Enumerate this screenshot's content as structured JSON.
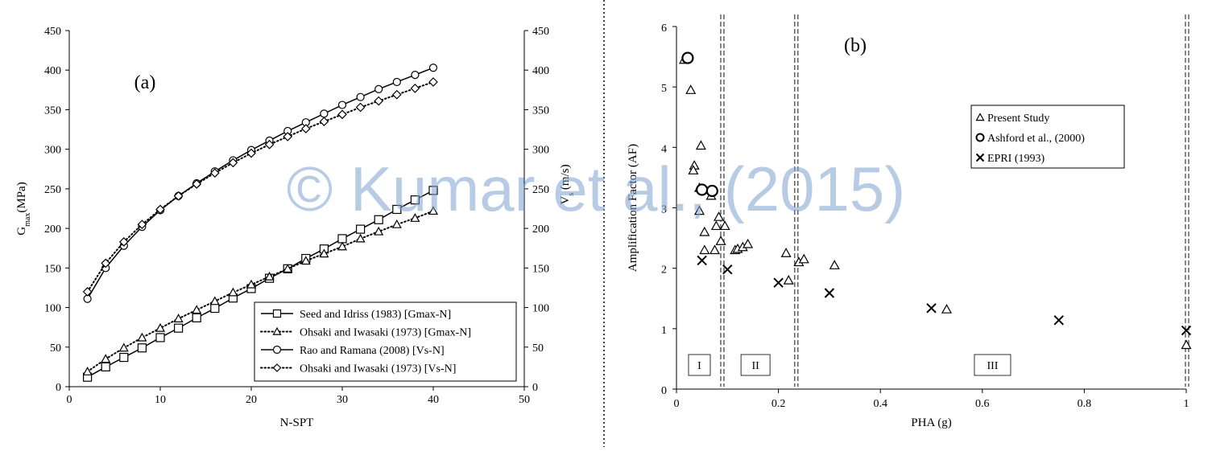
{
  "watermark": "© Kumar et al., (2015)",
  "chart_data": [
    {
      "type": "line",
      "panel_label": "(a)",
      "xlabel": "N-SPT",
      "ylabel": "G",
      "ylabel_sub": "max",
      "ylabel_tail": "(MPa)",
      "y2label": "V",
      "y2label_sub": "s",
      "y2label_tail": " (m/s)",
      "xlim": [
        0,
        50
      ],
      "ylim": [
        0,
        450
      ],
      "y2lim": [
        0,
        450
      ],
      "xticks": [
        0,
        10,
        20,
        30,
        40,
        50
      ],
      "yticks": [
        0,
        50,
        100,
        150,
        200,
        250,
        300,
        350,
        400,
        450
      ],
      "legend_position": "bottom-right",
      "x": [
        2,
        4,
        6,
        8,
        10,
        12,
        14,
        16,
        18,
        20,
        22,
        24,
        26,
        28,
        30,
        32,
        34,
        36,
        38,
        40
      ],
      "series": [
        {
          "name": "Seed and Idriss (1983) [Gmax-N]",
          "marker": "square",
          "line": "solid",
          "axis": "left",
          "values": [
            12,
            25,
            37,
            49,
            62,
            74,
            87,
            99,
            112,
            124,
            137,
            149,
            162,
            174,
            187,
            199,
            211,
            224,
            236,
            248
          ]
        },
        {
          "name": "Ohsaki and Iwasaki (1973) [Gmax-N]",
          "marker": "triangle",
          "line": "dotted",
          "axis": "left",
          "values": [
            19,
            35,
            49,
            62,
            74,
            86,
            97,
            108,
            119,
            129,
            139,
            149,
            159,
            168,
            177,
            187,
            196,
            205,
            213,
            222
          ]
        },
        {
          "name": "Rao and Ramana (2008) [Vs-N]",
          "marker": "circle",
          "line": "solid",
          "axis": "right",
          "values": [
            111,
            150,
            178,
            202,
            223,
            241,
            257,
            272,
            286,
            299,
            311,
            323,
            334,
            345,
            356,
            366,
            376,
            385,
            394,
            403
          ]
        },
        {
          "name": "Ohsaki and Iwasaki (1973) [Vs-N]",
          "marker": "diamond",
          "line": "dotted",
          "axis": "right",
          "values": [
            120,
            156,
            183,
            205,
            224,
            241,
            256,
            270,
            283,
            295,
            306,
            316,
            326,
            335,
            344,
            353,
            361,
            369,
            377,
            385
          ]
        }
      ]
    },
    {
      "type": "scatter",
      "panel_label": "(b)",
      "xlabel": "PHA (g)",
      "ylabel": "Amplification Factor (AF)",
      "xlim": [
        0,
        1
      ],
      "ylim": [
        0,
        6
      ],
      "xticks": [
        0,
        0.2,
        0.4,
        0.6,
        0.8,
        1
      ],
      "xticklabels": [
        "0",
        "0.2",
        "0.4",
        "0.6",
        "0.8",
        "1"
      ],
      "yticks": [
        0,
        1,
        2,
        3,
        4,
        5,
        6
      ],
      "legend_position": "right",
      "zone_boundaries": [
        0.09,
        0.235,
        1.0
      ],
      "zones": [
        {
          "label": "I",
          "x": 0.045
        },
        {
          "label": "II",
          "x": 0.155
        },
        {
          "label": "III",
          "x": 0.62
        }
      ],
      "series": [
        {
          "name": "Present Study",
          "marker": "triangle",
          "points": [
            [
              0.015,
              5.45
            ],
            [
              0.028,
              4.95
            ],
            [
              0.048,
              4.03
            ],
            [
              0.035,
              3.7
            ],
            [
              0.033,
              3.62
            ],
            [
              0.045,
              3.33
            ],
            [
              0.055,
              3.3
            ],
            [
              0.068,
              3.2
            ],
            [
              0.045,
              2.95
            ],
            [
              0.083,
              2.85
            ],
            [
              0.078,
              2.7
            ],
            [
              0.095,
              2.7
            ],
            [
              0.055,
              2.6
            ],
            [
              0.087,
              2.45
            ],
            [
              0.055,
              2.3
            ],
            [
              0.075,
              2.3
            ],
            [
              0.115,
              2.3
            ],
            [
              0.12,
              2.32
            ],
            [
              0.13,
              2.35
            ],
            [
              0.14,
              2.4
            ],
            [
              0.215,
              2.25
            ],
            [
              0.24,
              2.1
            ],
            [
              0.25,
              2.15
            ],
            [
              0.31,
              2.05
            ],
            [
              0.22,
              1.8
            ],
            [
              0.53,
              1.32
            ],
            [
              1.0,
              0.73
            ]
          ]
        },
        {
          "name": "Ashford et al., (2000)",
          "marker": "circle",
          "points": [
            [
              0.022,
              5.48
            ],
            [
              0.05,
              3.3
            ],
            [
              0.07,
              3.28
            ]
          ]
        },
        {
          "name": "EPRI (1993)",
          "marker": "x",
          "points": [
            [
              0.05,
              2.13
            ],
            [
              0.1,
              1.98
            ],
            [
              0.2,
              1.76
            ],
            [
              0.3,
              1.59
            ],
            [
              0.5,
              1.34
            ],
            [
              0.75,
              1.14
            ],
            [
              1.0,
              0.97
            ]
          ]
        }
      ]
    }
  ]
}
